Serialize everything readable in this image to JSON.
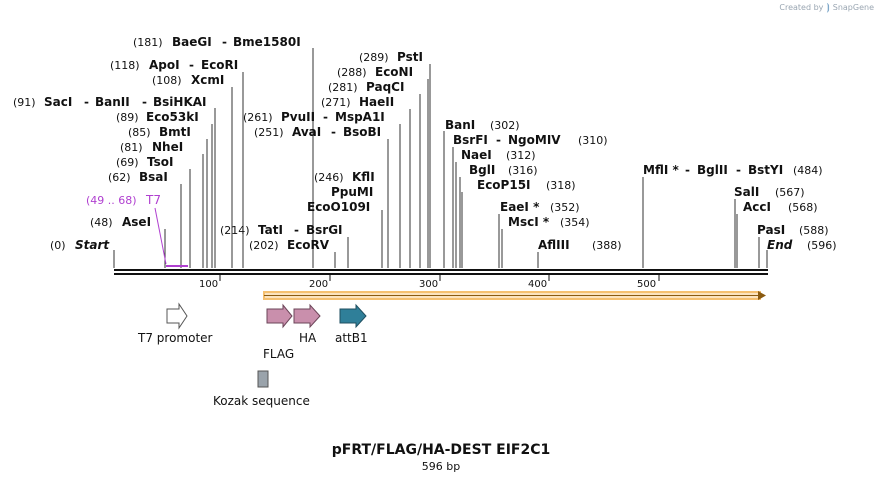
{
  "brand": {
    "created_by": "Created by",
    "product": "SnapGene",
    "logo_icon": "snapgene-logo"
  },
  "map": {
    "title": "pFRT/FLAG/HA-DEST EIF2C1",
    "length_label": "596 bp",
    "total_bp": 596,
    "ticks": [
      100,
      200,
      300,
      400,
      500
    ],
    "start": {
      "pos": "(0)",
      "label": "Start"
    },
    "end": {
      "pos": "(596)",
      "label": "End"
    },
    "colors": {
      "backbone": "#111111",
      "orf": "#f5c070",
      "t7": "#b040d0",
      "flag": "#c98fac",
      "ha": "#c98fac",
      "attb1": "#2f7f99",
      "kozak": "#9aa3ab"
    }
  },
  "enzymes": [
    {
      "pos": "(181)",
      "names": [
        "BaeGI",
        "Bme1580I"
      ],
      "bp": 181
    },
    {
      "pos": "(118)",
      "names": [
        "ApoI",
        "EcoRI"
      ],
      "bp": 118
    },
    {
      "pos": "(108)",
      "names": [
        "XcmI"
      ],
      "bp": 108
    },
    {
      "pos": "(91)",
      "names": [
        "SacI",
        "BanII",
        "BsiHKAI"
      ],
      "bp": 91
    },
    {
      "pos": "(89)",
      "names": [
        "Eco53kI"
      ],
      "bp": 89
    },
    {
      "pos": "(85)",
      "names": [
        "BmtI"
      ],
      "bp": 85
    },
    {
      "pos": "(81)",
      "names": [
        "NheI"
      ],
      "bp": 81
    },
    {
      "pos": "(69)",
      "names": [
        "TsoI"
      ],
      "bp": 69
    },
    {
      "pos": "(62)",
      "names": [
        "BsaI"
      ],
      "bp": 62
    },
    {
      "pos": "(48)",
      "names": [
        "AseI"
      ],
      "bp": 48
    },
    {
      "pos": "(289)",
      "names": [
        "PstI"
      ],
      "bp": 289
    },
    {
      "pos": "(288)",
      "names": [
        "EcoNI"
      ],
      "bp": 288
    },
    {
      "pos": "(281)",
      "names": [
        "PaqCI"
      ],
      "bp": 281
    },
    {
      "pos": "(271)",
      "names": [
        "HaeII"
      ],
      "bp": 271
    },
    {
      "pos": "(261)",
      "names": [
        "PvuII",
        "MspA1I"
      ],
      "bp": 261
    },
    {
      "pos": "(251)",
      "names": [
        "AvaI",
        "BsoBI"
      ],
      "bp": 251
    },
    {
      "pos": "(246)",
      "names": [
        "KflI"
      ],
      "bp": 246
    },
    {
      "pos": "",
      "names": [
        "PpuMI"
      ],
      "bp": 246
    },
    {
      "pos": "",
      "names": [
        "EcoO109I"
      ],
      "bp": 246
    },
    {
      "pos": "(214)",
      "names": [
        "TatI",
        "BsrGI"
      ],
      "bp": 214
    },
    {
      "pos": "(202)",
      "names": [
        "EcoRV"
      ],
      "bp": 202
    },
    {
      "pos": "(302)",
      "names": [
        "BanI"
      ],
      "bp": 302
    },
    {
      "pos": "(310)",
      "names": [
        "BsrFI",
        "NgoMIV"
      ],
      "bp": 310
    },
    {
      "pos": "(312)",
      "names": [
        "NaeI"
      ],
      "bp": 312
    },
    {
      "pos": "(316)",
      "names": [
        "BglI"
      ],
      "bp": 316
    },
    {
      "pos": "(318)",
      "names": [
        "EcoP15I"
      ],
      "bp": 318
    },
    {
      "pos": "(352)",
      "names": [
        "EaeI *"
      ],
      "bp": 352
    },
    {
      "pos": "(354)",
      "names": [
        "MscI *"
      ],
      "bp": 354
    },
    {
      "pos": "(388)",
      "names": [
        "AflIII"
      ],
      "bp": 388
    },
    {
      "pos": "(484)",
      "names": [
        "MflI *",
        "BglII",
        "BstYI"
      ],
      "bp": 484
    },
    {
      "pos": "(567)",
      "names": [
        "SalI"
      ],
      "bp": 567
    },
    {
      "pos": "(568)",
      "names": [
        "AccI"
      ],
      "bp": 568
    },
    {
      "pos": "(588)",
      "names": [
        "PasI"
      ],
      "bp": 588
    }
  ],
  "t7_site": {
    "pos": "(49 .. 68)",
    "label": "T7"
  },
  "features": [
    {
      "label": "T7 promoter",
      "icon": "promoter-arrow-icon"
    },
    {
      "label": "FLAG",
      "icon": "flag-tag-arrow-icon"
    },
    {
      "label": "HA",
      "icon": "ha-tag-arrow-icon"
    },
    {
      "label": "attB1",
      "icon": "attb1-arrow-icon"
    },
    {
      "label": "Kozak sequence",
      "icon": "kozak-box-icon"
    }
  ]
}
